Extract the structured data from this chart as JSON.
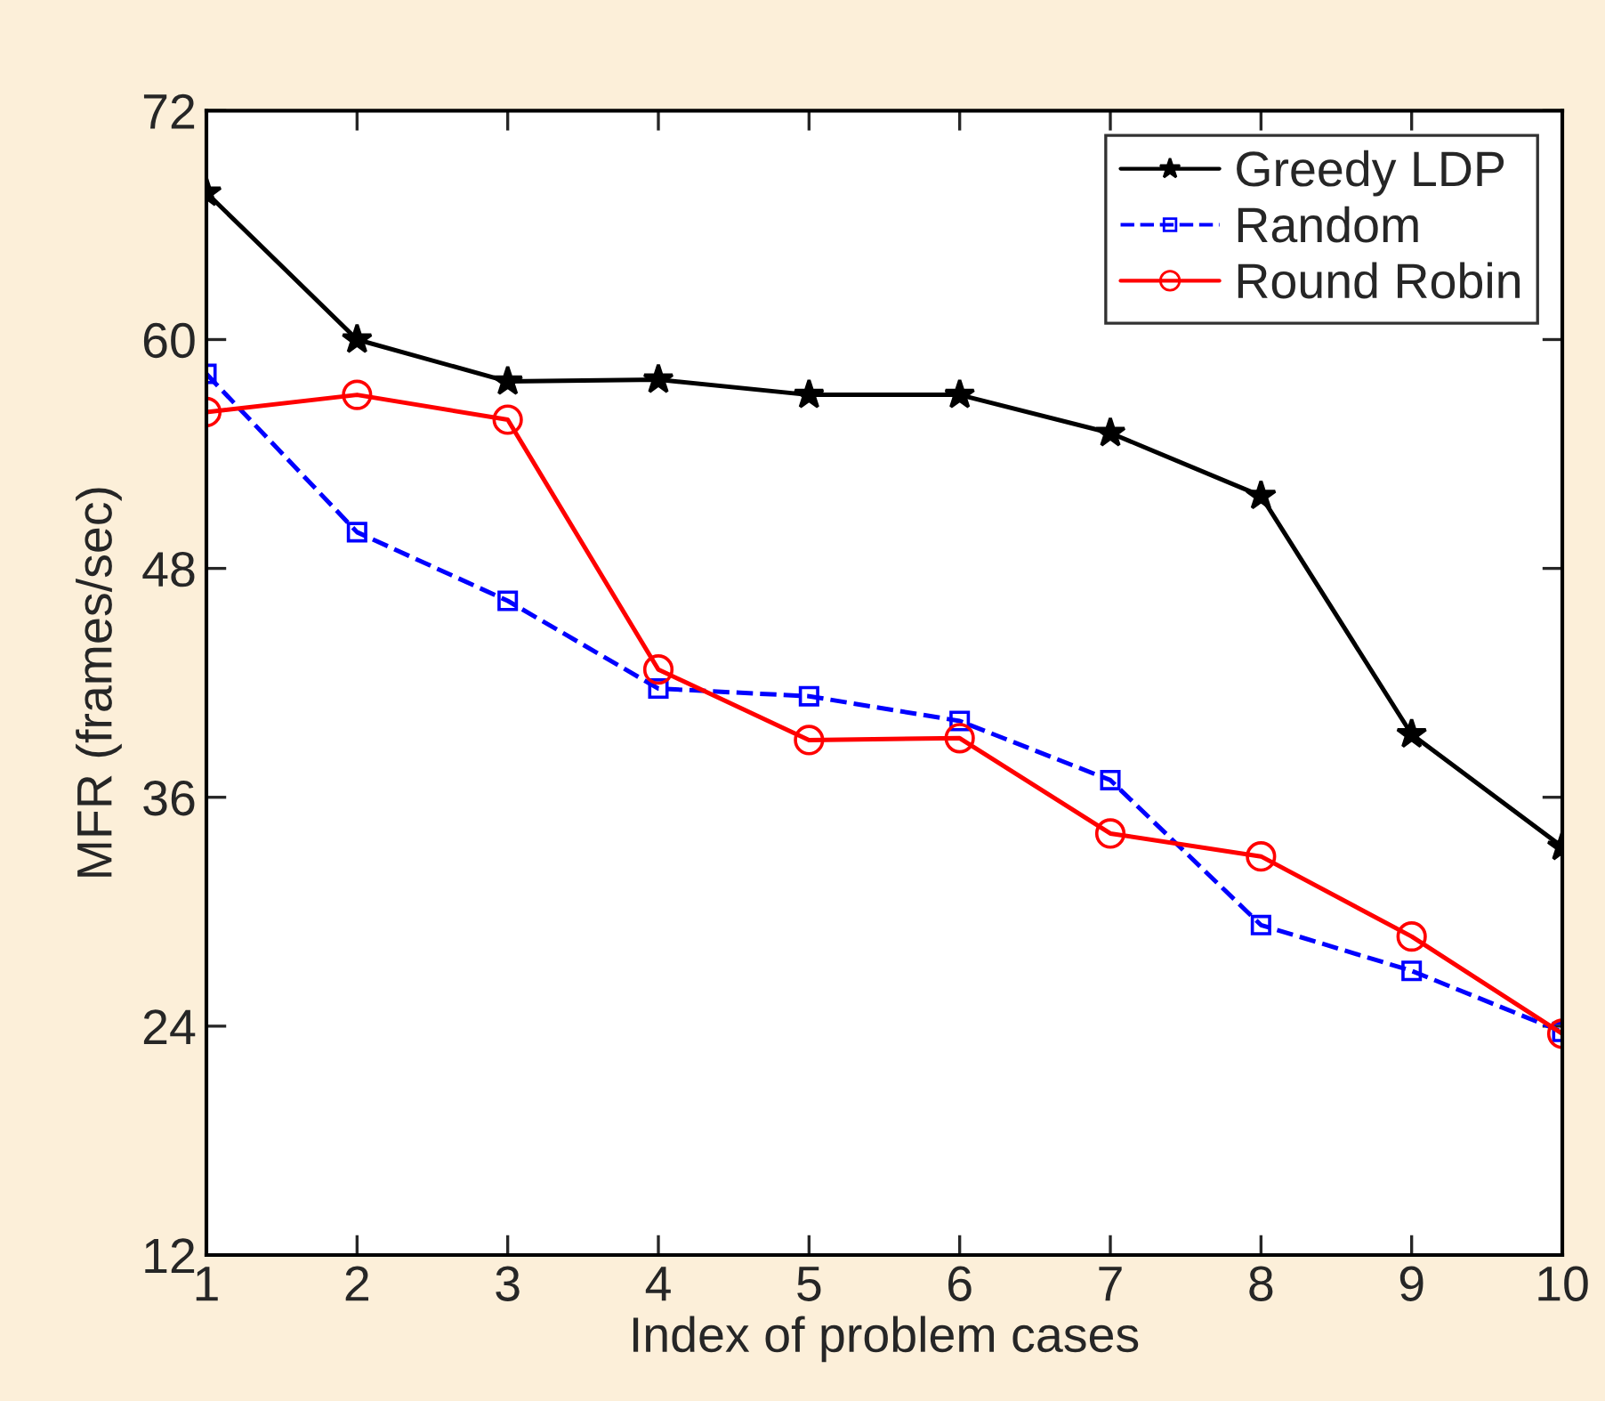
{
  "chart_data": {
    "type": "line",
    "xlabel": "Index of problem cases",
    "ylabel": "MFR (frames/sec)",
    "x": [
      1,
      2,
      3,
      4,
      5,
      6,
      7,
      8,
      9,
      10
    ],
    "series": [
      {
        "name": "Greedy LDP",
        "color": "#000000",
        "marker": "star",
        "line_style": "solid",
        "values": [
          67.7,
          60,
          57.8,
          57.9,
          57.1,
          57.1,
          55.1,
          51.8,
          39.3,
          33.4
        ]
      },
      {
        "name": "Random",
        "color": "#0000ff",
        "marker": "square",
        "line_style": "dashed",
        "values": [
          58.2,
          49.9,
          46.3,
          41.7,
          41.3,
          40.0,
          36.9,
          29.3,
          26.9,
          23.7
        ]
      },
      {
        "name": "Round Robin",
        "color": "#ff0000",
        "marker": "circle",
        "line_style": "solid",
        "values": [
          56.2,
          57.1,
          55.8,
          42.7,
          39.0,
          39.1,
          34.1,
          32.9,
          28.7,
          23.6
        ]
      }
    ],
    "xlim": [
      1,
      10
    ],
    "xticks": [
      1,
      2,
      3,
      4,
      5,
      6,
      7,
      8,
      9,
      10
    ],
    "ylim": [
      12,
      72
    ],
    "yticks": [
      12,
      24,
      36,
      48,
      60,
      72
    ],
    "grid": false,
    "legend": "top right"
  }
}
